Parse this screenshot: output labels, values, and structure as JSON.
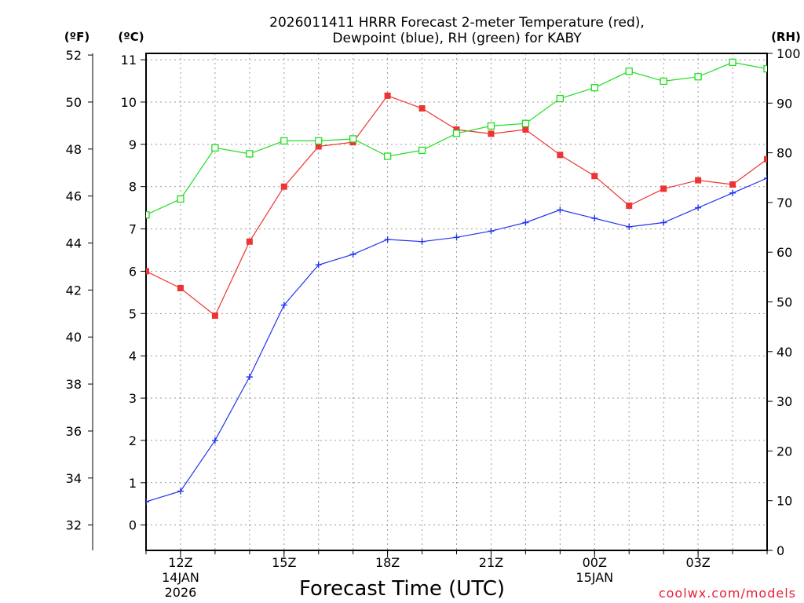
{
  "chart_data": {
    "type": "line",
    "title_line1": "2026011411 HRRR Forecast 2-meter Temperature (red),",
    "title_line2": "Dewpoint (blue), RH (green) for KABY",
    "xlabel": "Forecast Time (UTC)",
    "credit": "coolwx.com/models",
    "units": {
      "fahrenheit": "(ºF)",
      "celsius": "(ºC)",
      "rh": "(RH)"
    },
    "x_hours": [
      11,
      12,
      13,
      14,
      15,
      16,
      17,
      18,
      19,
      20,
      21,
      22,
      23,
      24,
      25,
      26,
      27,
      28,
      29
    ],
    "xlim": [
      11,
      29
    ],
    "x_ticks": [
      {
        "hour": 12,
        "label": "12Z",
        "date_line1": "14JAN",
        "date_line2": "2026"
      },
      {
        "hour": 15,
        "label": "15Z",
        "date_line1": "",
        "date_line2": ""
      },
      {
        "hour": 18,
        "label": "18Z",
        "date_line1": "",
        "date_line2": ""
      },
      {
        "hour": 21,
        "label": "21Z",
        "date_line1": "",
        "date_line2": ""
      },
      {
        "hour": 24,
        "label": "00Z",
        "date_line1": "15JAN",
        "date_line2": ""
      },
      {
        "hour": 27,
        "label": "03Z",
        "date_line1": "",
        "date_line2": ""
      }
    ],
    "celsius_axis": {
      "ylim": [
        -0.6,
        11.15
      ],
      "ticks": [
        "0",
        "1",
        "2",
        "3",
        "4",
        "5",
        "6",
        "7",
        "8",
        "9",
        "10",
        "11"
      ]
    },
    "fahrenheit_axis": {
      "ticks": [
        "32",
        "34",
        "36",
        "38",
        "40",
        "42",
        "44",
        "46",
        "48",
        "50",
        "52"
      ]
    },
    "rh_axis": {
      "ylim": [
        0,
        100
      ],
      "ticks": [
        "0",
        "10",
        "20",
        "30",
        "40",
        "50",
        "60",
        "70",
        "80",
        "90",
        "100"
      ]
    },
    "series": [
      {
        "name": "Temperature",
        "axis": "celsius",
        "color": "#ee3333",
        "marker": "filled-square",
        "values": [
          6.0,
          5.6,
          4.95,
          6.7,
          8.0,
          8.95,
          9.05,
          10.15,
          9.85,
          9.35,
          9.25,
          9.35,
          8.75,
          8.25,
          7.55,
          7.95,
          8.15,
          8.05,
          8.65
        ]
      },
      {
        "name": "Dewpoint",
        "axis": "celsius",
        "color": "#2233ee",
        "marker": "plus",
        "values": [
          0.55,
          0.8,
          2.0,
          3.5,
          5.2,
          6.15,
          6.4,
          6.75,
          6.7,
          6.8,
          6.95,
          7.15,
          7.45,
          7.25,
          7.05,
          7.15,
          7.5,
          7.85,
          8.2
        ]
      },
      {
        "name": "RH",
        "axis": "rh",
        "color": "#22dd22",
        "marker": "open-square",
        "values": [
          67.5,
          70.7,
          81.0,
          79.8,
          82.4,
          82.4,
          82.8,
          79.3,
          80.5,
          83.9,
          85.4,
          85.9,
          90.9,
          93.1,
          96.4,
          94.4,
          95.3,
          98.2,
          96.9
        ]
      }
    ]
  }
}
